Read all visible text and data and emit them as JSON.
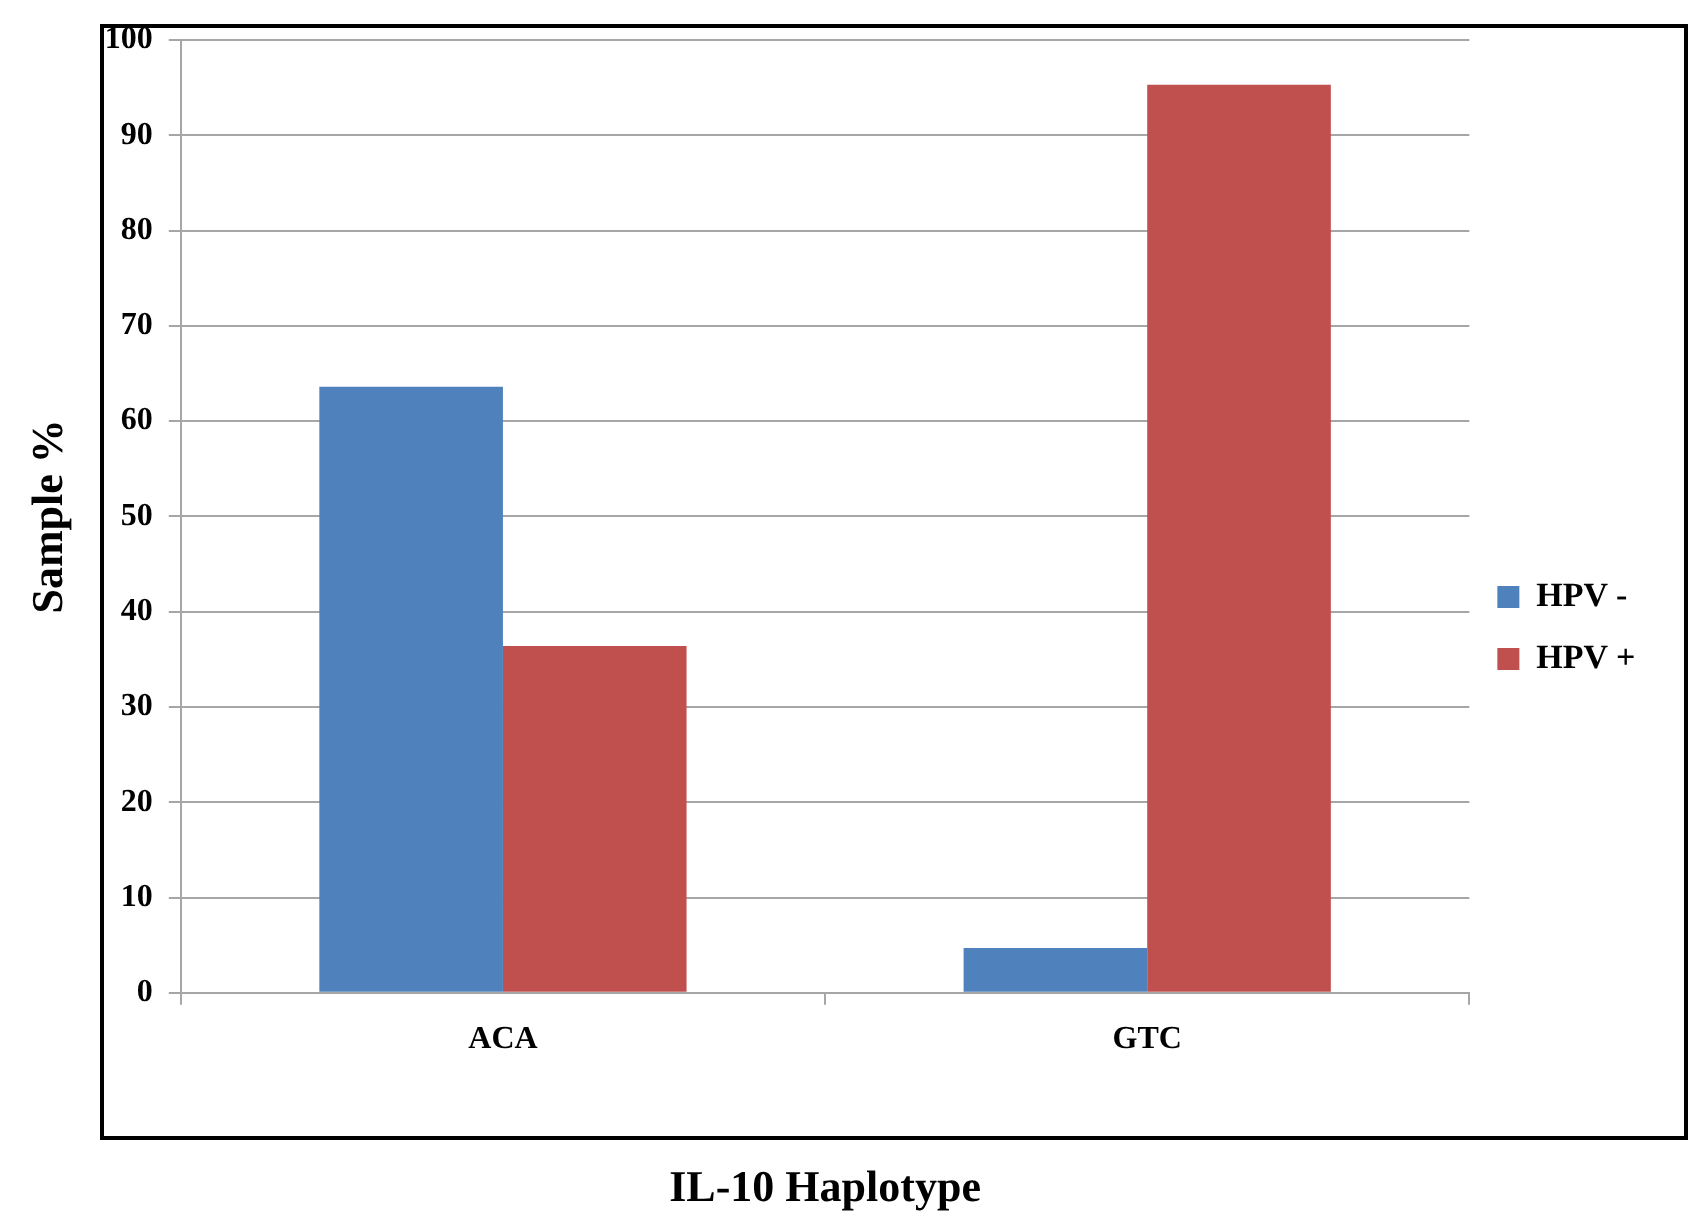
{
  "chart_data": {
    "type": "bar",
    "xlabel": "IL-10 Haplotype",
    "ylabel": "Sample %",
    "categories": [
      "ACA",
      "GTC"
    ],
    "series": [
      {
        "name": "HPV -",
        "color": "#4f81bd",
        "values": [
          63.6,
          4.7
        ]
      },
      {
        "name": "HPV +",
        "color": "#c0504d",
        "values": [
          36.4,
          95.3
        ]
      }
    ],
    "ylim": [
      0,
      100
    ],
    "yticks": [
      0,
      10,
      20,
      30,
      40,
      50,
      60,
      70,
      80,
      90,
      100
    ],
    "grid": "y",
    "legend": "right"
  }
}
